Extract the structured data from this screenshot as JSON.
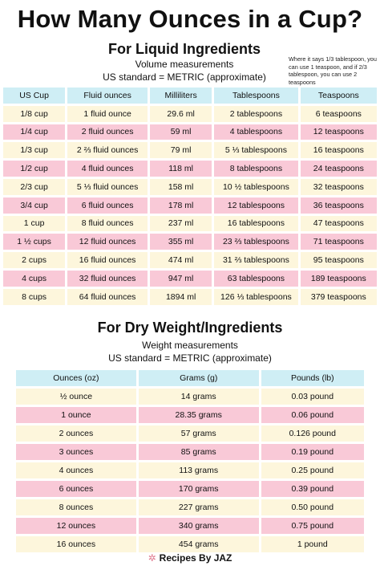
{
  "title": "How Many Ounces in a Cup?",
  "liquid": {
    "heading": "For Liquid Ingredients",
    "subtitle1": "Volume measurements",
    "subtitle2": "US standard = METRIC (approximate)",
    "note": "Where it says 1/3 tablespoon, you can use 1 teaspoon, and if 2/3 tablespoon, you can use 2 teaspoons",
    "columns": [
      "US Cup",
      "Fluid ounces",
      "Milliliters",
      "Tablespoons",
      "Teaspoons"
    ],
    "rows": [
      [
        "1/8 cup",
        "1 fluid ounce",
        "29.6 ml",
        "2 tablespoons",
        "6 teaspoons"
      ],
      [
        "1/4 cup",
        "2 fluid ounces",
        "59 ml",
        "4 tablespoons",
        "12 teaspoons"
      ],
      [
        "1/3 cup",
        "2 ⅔ fluid ounces",
        "79 ml",
        "5 ⅓ tablespoons",
        "16 teaspoons"
      ],
      [
        "1/2 cup",
        "4 fluid ounces",
        "118 ml",
        "8 tablespoons",
        "24 teaspoons"
      ],
      [
        "2/3 cup",
        "5 ⅓ fluid ounces",
        "158 ml",
        "10 ½ tablespoons",
        "32 teaspoons"
      ],
      [
        "3/4 cup",
        "6 fluid ounces",
        "178 ml",
        "12 tablespoons",
        "36 teaspoons"
      ],
      [
        "1 cup",
        "8 fluid ounces",
        "237 ml",
        "16 tablespoons",
        "47 teaspoons"
      ],
      [
        "1 ½ cups",
        "12 fluid ounces",
        "355 ml",
        "23 ⅔ tablespoons",
        "71 teaspoons"
      ],
      [
        "2 cups",
        "16 fluid ounces",
        "474 ml",
        "31 ⅔ tablespoons",
        "95 teaspoons"
      ],
      [
        "4 cups",
        "32 fluid ounces",
        "947 ml",
        "63 tablespoons",
        "189 teaspoons"
      ],
      [
        "8 cups",
        "64 fluid ounces",
        "1894 ml",
        "126 ⅓ tablespoons",
        "379 teaspoons"
      ]
    ]
  },
  "dry": {
    "heading": "For Dry Weight/Ingredients",
    "subtitle1": "Weight measurements",
    "subtitle2": "US standard = METRIC (approximate)",
    "columns": [
      "Ounces (oz)",
      "Grams (g)",
      "Pounds (lb)"
    ],
    "rows": [
      [
        "½ ounce",
        "14 grams",
        "0.03 pound"
      ],
      [
        "1 ounce",
        "28.35 grams",
        "0.06 pound"
      ],
      [
        "2 ounces",
        "57 grams",
        "0.126 pound"
      ],
      [
        "3 ounces",
        "85 grams",
        "0.19 pound"
      ],
      [
        "4 ounces",
        "113 grams",
        "0.25 pound"
      ],
      [
        "6 ounces",
        "170 grams",
        "0.39 pound"
      ],
      [
        "8 ounces",
        "227 grams",
        "0.50 pound"
      ],
      [
        "12 ounces",
        "340 grams",
        "0.75 pound"
      ],
      [
        "16 ounces",
        "454 grams",
        "1 pound"
      ]
    ]
  },
  "footer": "Recipes By JAZ",
  "colors": {
    "header": "#cfeef5",
    "row_light": "#fdf6dc",
    "row_pink": "#f9c9d7"
  }
}
